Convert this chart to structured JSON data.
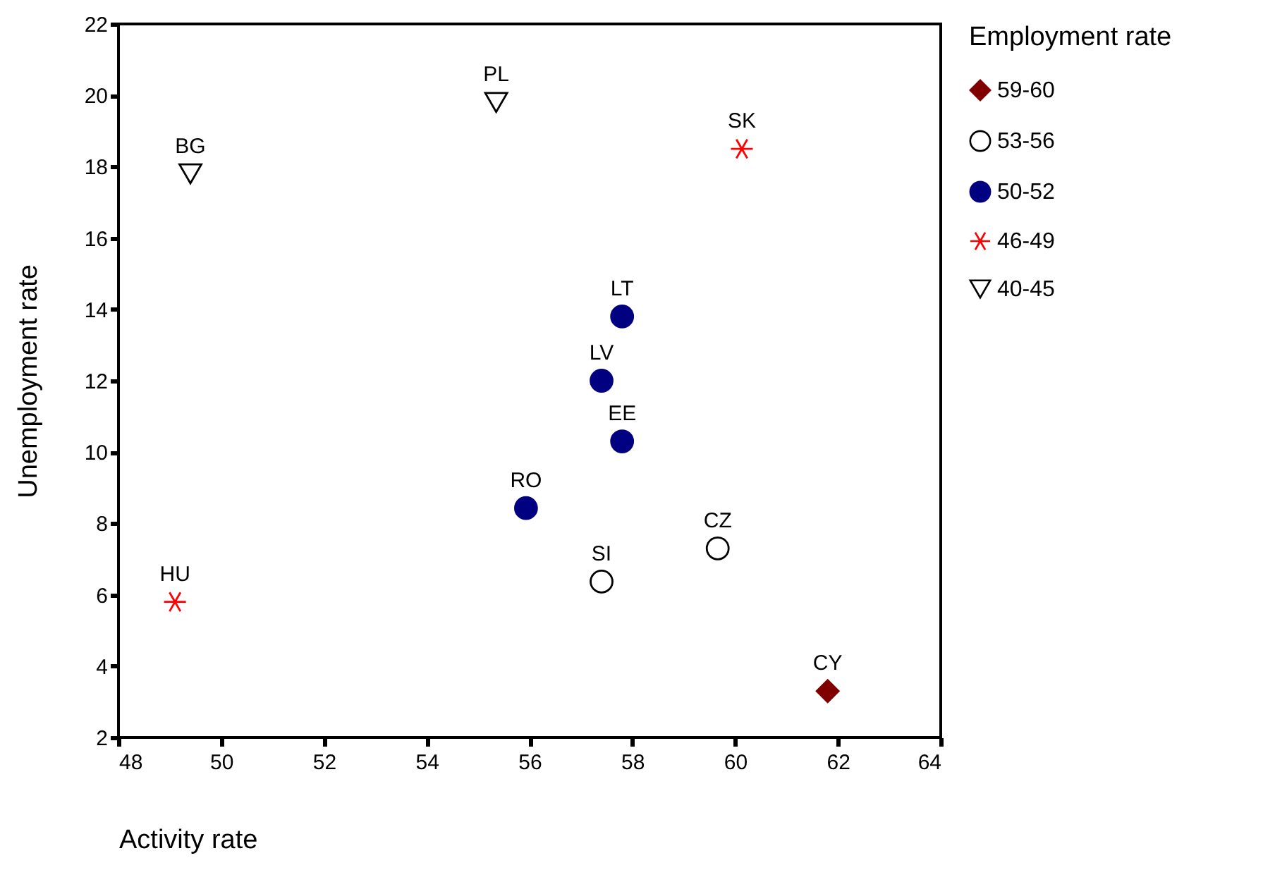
{
  "chart_data": {
    "type": "scatter",
    "xlabel": "Activity rate",
    "ylabel": "Unemployment rate",
    "legend_title": "Employment rate",
    "legend": "right",
    "grid": false,
    "xlim": [
      48,
      64
    ],
    "xticks": [
      48,
      50,
      52,
      54,
      56,
      58,
      60,
      62,
      64
    ],
    "ylim": [
      2,
      22
    ],
    "yticks": [
      2,
      4,
      6,
      8,
      10,
      12,
      14,
      16,
      18,
      20,
      22
    ],
    "series": [
      {
        "name": "59-60",
        "color": "#800000",
        "marker": "diamond",
        "x": [
          61.8
        ],
        "values": [
          3.3
        ]
      },
      {
        "name": "53-56",
        "color": "#000000",
        "marker": "circle",
        "x": [
          57.4,
          59.66
        ],
        "values": [
          6.37,
          7.3
        ]
      },
      {
        "name": "50-52",
        "color": "#000080",
        "marker": "circle",
        "x": [
          57.8,
          57.4,
          57.8,
          55.93
        ],
        "values": [
          13.8,
          12.0,
          10.3,
          8.43
        ]
      },
      {
        "name": "46-49",
        "color": "#ff0000",
        "marker": "cross",
        "x": [
          60.13,
          49.1
        ],
        "values": [
          18.5,
          5.8
        ]
      },
      {
        "name": "40-45",
        "color": "#000000",
        "marker": "triangle",
        "x": [
          55.35,
          49.4
        ],
        "values": [
          19.8,
          17.8
        ]
      }
    ],
    "annotations": [
      {
        "text": "CY",
        "x": 61.8,
        "y": 3.3
      },
      {
        "text": "SI",
        "x": 57.4,
        "y": 6.37
      },
      {
        "text": "CZ",
        "x": 59.66,
        "y": 7.3
      },
      {
        "text": "LT",
        "x": 57.8,
        "y": 13.8
      },
      {
        "text": "LV",
        "x": 57.4,
        "y": 12.0
      },
      {
        "text": "EE",
        "x": 57.8,
        "y": 10.3
      },
      {
        "text": "RO",
        "x": 55.93,
        "y": 8.43
      },
      {
        "text": "SK",
        "x": 60.13,
        "y": 18.5
      },
      {
        "text": "HU",
        "x": 49.1,
        "y": 5.8
      },
      {
        "text": "PL",
        "x": 55.35,
        "y": 19.8
      },
      {
        "text": "BG",
        "x": 49.4,
        "y": 17.8
      }
    ]
  }
}
